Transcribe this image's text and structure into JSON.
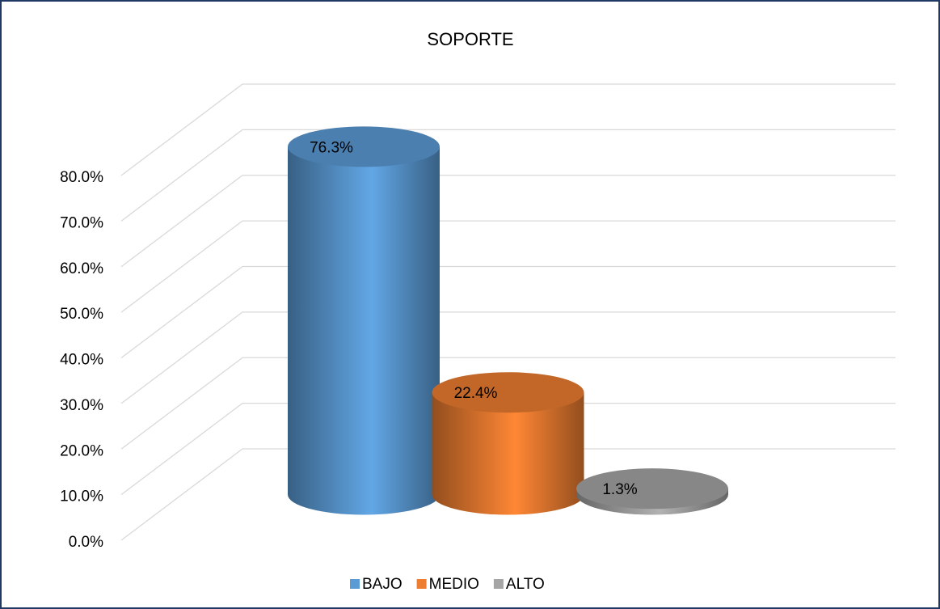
{
  "chart_data": {
    "type": "bar3d",
    "title": "SOPORTE",
    "categories": [
      "BAJO",
      "MEDIO",
      "ALTO"
    ],
    "values": [
      76.3,
      22.4,
      1.3
    ],
    "value_labels": [
      "76.3%",
      "22.4%",
      "1.3%"
    ],
    "colors": [
      "#5b9bd5",
      "#ed7d31",
      "#a5a5a5"
    ],
    "ylim": [
      0,
      80
    ],
    "yticks": [
      {
        "value": 0,
        "label": "0.0%"
      },
      {
        "value": 10,
        "label": "10.0%"
      },
      {
        "value": 20,
        "label": "20.0%"
      },
      {
        "value": 30,
        "label": "30.0%"
      },
      {
        "value": 40,
        "label": "40.0%"
      },
      {
        "value": 50,
        "label": "50.0%"
      },
      {
        "value": 60,
        "label": "60.0%"
      },
      {
        "value": 70,
        "label": "70.0%"
      },
      {
        "value": 80,
        "label": "80.0%"
      }
    ],
    "grid": true,
    "legend": "bottom"
  }
}
